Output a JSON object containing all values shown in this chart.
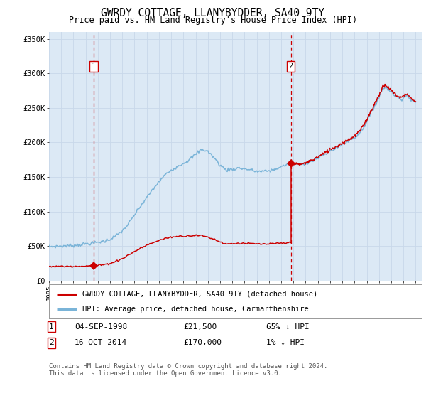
{
  "title": "GWRDY COTTAGE, LLANYBYDDER, SA40 9TY",
  "subtitle": "Price paid vs. HM Land Registry's House Price Index (HPI)",
  "ylim": [
    0,
    360000
  ],
  "yticks": [
    0,
    50000,
    100000,
    150000,
    200000,
    250000,
    300000,
    350000
  ],
  "ytick_labels": [
    "£0",
    "£50K",
    "£100K",
    "£150K",
    "£200K",
    "£250K",
    "£300K",
    "£350K"
  ],
  "xlim_start": 1995.0,
  "xlim_end": 2025.5,
  "background_color": "#ffffff",
  "plot_bg_color": "#dce9f5",
  "grid_color": "#c8d8ea",
  "purchase1_date": 1998.67,
  "purchase1_price": 21500,
  "purchase2_date": 2014.79,
  "purchase2_price": 170000,
  "legend_line1": "GWRDY COTTAGE, LLANYBYDDER, SA40 9TY (detached house)",
  "legend_line2": "HPI: Average price, detached house, Carmarthenshire",
  "table_row1": [
    "1",
    "04-SEP-1998",
    "£21,500",
    "65% ↓ HPI"
  ],
  "table_row2": [
    "2",
    "16-OCT-2014",
    "£170,000",
    "1% ↓ HPI"
  ],
  "footer": "Contains HM Land Registry data © Crown copyright and database right 2024.\nThis data is licensed under the Open Government Licence v3.0.",
  "hpi_color": "#7ab4d8",
  "price_color": "#cc0000",
  "marker_color": "#cc0000",
  "dashed_color": "#cc0000",
  "label_box_color": "#cc0000",
  "hpi_anchors": [
    [
      1995.0,
      49000
    ],
    [
      1995.5,
      49500
    ],
    [
      1996.0,
      50000
    ],
    [
      1996.5,
      50500
    ],
    [
      1997.0,
      51000
    ],
    [
      1997.5,
      52000
    ],
    [
      1998.0,
      53000
    ],
    [
      1998.5,
      54000
    ],
    [
      1999.0,
      55500
    ],
    [
      1999.5,
      57000
    ],
    [
      2000.0,
      60000
    ],
    [
      2000.5,
      65000
    ],
    [
      2001.0,
      72000
    ],
    [
      2001.5,
      82000
    ],
    [
      2002.0,
      95000
    ],
    [
      2002.5,
      108000
    ],
    [
      2003.0,
      120000
    ],
    [
      2003.5,
      132000
    ],
    [
      2004.0,
      143000
    ],
    [
      2004.5,
      153000
    ],
    [
      2005.0,
      160000
    ],
    [
      2005.5,
      165000
    ],
    [
      2006.0,
      170000
    ],
    [
      2006.5,
      175000
    ],
    [
      2007.0,
      183000
    ],
    [
      2007.5,
      190000
    ],
    [
      2008.0,
      187000
    ],
    [
      2008.5,
      178000
    ],
    [
      2009.0,
      167000
    ],
    [
      2009.5,
      160000
    ],
    [
      2010.0,
      161000
    ],
    [
      2010.5,
      163000
    ],
    [
      2011.0,
      162000
    ],
    [
      2011.5,
      160000
    ],
    [
      2012.0,
      158000
    ],
    [
      2012.5,
      158000
    ],
    [
      2013.0,
      159000
    ],
    [
      2013.5,
      161000
    ],
    [
      2014.0,
      165000
    ],
    [
      2014.5,
      168000
    ],
    [
      2014.79,
      170000
    ],
    [
      2015.0,
      169000
    ],
    [
      2015.5,
      168000
    ],
    [
      2016.0,
      170000
    ],
    [
      2016.5,
      173000
    ],
    [
      2017.0,
      177000
    ],
    [
      2017.5,
      182000
    ],
    [
      2018.0,
      188000
    ],
    [
      2018.5,
      192000
    ],
    [
      2019.0,
      197000
    ],
    [
      2019.5,
      202000
    ],
    [
      2020.0,
      207000
    ],
    [
      2020.5,
      215000
    ],
    [
      2021.0,
      230000
    ],
    [
      2021.5,
      248000
    ],
    [
      2022.0,
      265000
    ],
    [
      2022.3,
      278000
    ],
    [
      2022.6,
      280000
    ],
    [
      2022.9,
      275000
    ],
    [
      2023.2,
      270000
    ],
    [
      2023.5,
      265000
    ],
    [
      2023.8,
      263000
    ],
    [
      2024.0,
      265000
    ],
    [
      2024.3,
      268000
    ],
    [
      2024.6,
      262000
    ],
    [
      2025.0,
      257000
    ]
  ],
  "red_anchors_pre": [
    [
      1995.0,
      20500
    ],
    [
      1995.5,
      20500
    ],
    [
      1996.0,
      20600
    ],
    [
      1996.5,
      20700
    ],
    [
      1997.0,
      20800
    ],
    [
      1997.5,
      21000
    ],
    [
      1998.0,
      21000
    ],
    [
      1998.67,
      21500
    ],
    [
      1999.0,
      22000
    ],
    [
      1999.5,
      23000
    ],
    [
      2000.0,
      25000
    ],
    [
      2000.5,
      28000
    ],
    [
      2001.0,
      32000
    ],
    [
      2001.5,
      37000
    ],
    [
      2002.0,
      42000
    ],
    [
      2002.5,
      47000
    ],
    [
      2003.0,
      51000
    ],
    [
      2003.5,
      55000
    ],
    [
      2004.0,
      58000
    ],
    [
      2004.5,
      61000
    ],
    [
      2005.0,
      63000
    ],
    [
      2005.5,
      64000
    ],
    [
      2006.0,
      64500
    ],
    [
      2006.5,
      65000
    ],
    [
      2007.0,
      65500
    ],
    [
      2007.5,
      65000
    ],
    [
      2008.0,
      63000
    ],
    [
      2008.5,
      60000
    ],
    [
      2009.0,
      56000
    ],
    [
      2009.5,
      53000
    ],
    [
      2010.0,
      53500
    ],
    [
      2010.5,
      54000
    ],
    [
      2011.0,
      54000
    ],
    [
      2011.5,
      53500
    ],
    [
      2012.0,
      53000
    ],
    [
      2012.5,
      52800
    ],
    [
      2013.0,
      53000
    ],
    [
      2013.5,
      53500
    ],
    [
      2014.0,
      54000
    ],
    [
      2014.5,
      54500
    ],
    [
      2014.79,
      55000
    ]
  ],
  "red_anchors_post": [
    [
      2014.79,
      170000
    ],
    [
      2015.0,
      169000
    ],
    [
      2015.5,
      168000
    ],
    [
      2016.0,
      170000
    ],
    [
      2016.5,
      174000
    ],
    [
      2017.0,
      179000
    ],
    [
      2017.5,
      184000
    ],
    [
      2018.0,
      190000
    ],
    [
      2018.5,
      194000
    ],
    [
      2019.0,
      199000
    ],
    [
      2019.5,
      204000
    ],
    [
      2020.0,
      209000
    ],
    [
      2020.5,
      218000
    ],
    [
      2021.0,
      233000
    ],
    [
      2021.5,
      251000
    ],
    [
      2022.0,
      268000
    ],
    [
      2022.3,
      281000
    ],
    [
      2022.6,
      282000
    ],
    [
      2022.9,
      277000
    ],
    [
      2023.2,
      272000
    ],
    [
      2023.5,
      267000
    ],
    [
      2023.8,
      265000
    ],
    [
      2024.0,
      267000
    ],
    [
      2024.3,
      271000
    ],
    [
      2024.6,
      264000
    ],
    [
      2025.0,
      258000
    ]
  ]
}
